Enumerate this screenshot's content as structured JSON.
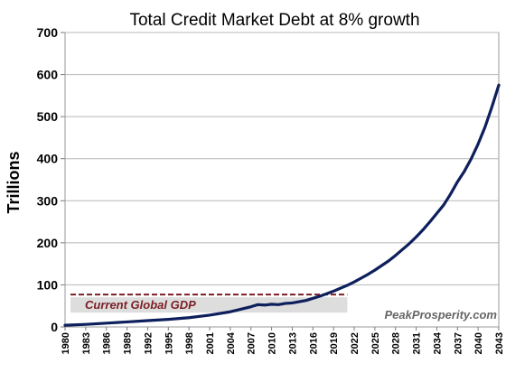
{
  "chart_data": {
    "type": "line",
    "title": "Total Credit Market Debt at 8% growth",
    "xlabel": "",
    "ylabel": "Trillions",
    "ylim": [
      0,
      700
    ],
    "yticks": [
      0,
      100,
      200,
      300,
      400,
      500,
      600,
      700
    ],
    "xticks": [
      "1980",
      "1983",
      "1986",
      "1989",
      "1992",
      "1995",
      "1998",
      "2001",
      "2004",
      "2007",
      "2010",
      "2013",
      "2016",
      "2019",
      "2022",
      "2025",
      "2028",
      "2031",
      "2034",
      "2037",
      "2040",
      "2043"
    ],
    "grid": "horizontal",
    "series": [
      {
        "color": "#0d1f5c",
        "x": [
          1980,
          1983,
          1986,
          1989,
          1992,
          1995,
          1998,
          2001,
          2004,
          2007,
          2008,
          2009,
          2010,
          2011,
          2012,
          2013,
          2014,
          2015,
          2016,
          2017,
          2018,
          2019,
          2020,
          2021,
          2022,
          2023,
          2024,
          2025,
          2026,
          2027,
          2028,
          2029,
          2030,
          2031,
          2032,
          2033,
          2034,
          2035,
          2036,
          2037,
          2038,
          2039,
          2040,
          2041,
          2042,
          2043
        ],
        "y": [
          4,
          6,
          9,
          12,
          15,
          18,
          22,
          28,
          36,
          48,
          53,
          52,
          54,
          53,
          56,
          57,
          60,
          63,
          68,
          73,
          79,
          85,
          92,
          99,
          107,
          116,
          125,
          135,
          146,
          157,
          170,
          184,
          198,
          214,
          231,
          250,
          270,
          290,
          316,
          345,
          370,
          400,
          435,
          475,
          523,
          575
        ]
      }
    ],
    "annotations": [
      {
        "label": "Current Global GDP",
        "value": 77,
        "color": "#7b1f24",
        "line_style": "dashed"
      }
    ],
    "watermark": {
      "text": "PeakProsperity.com",
      "color": "#666666"
    }
  }
}
